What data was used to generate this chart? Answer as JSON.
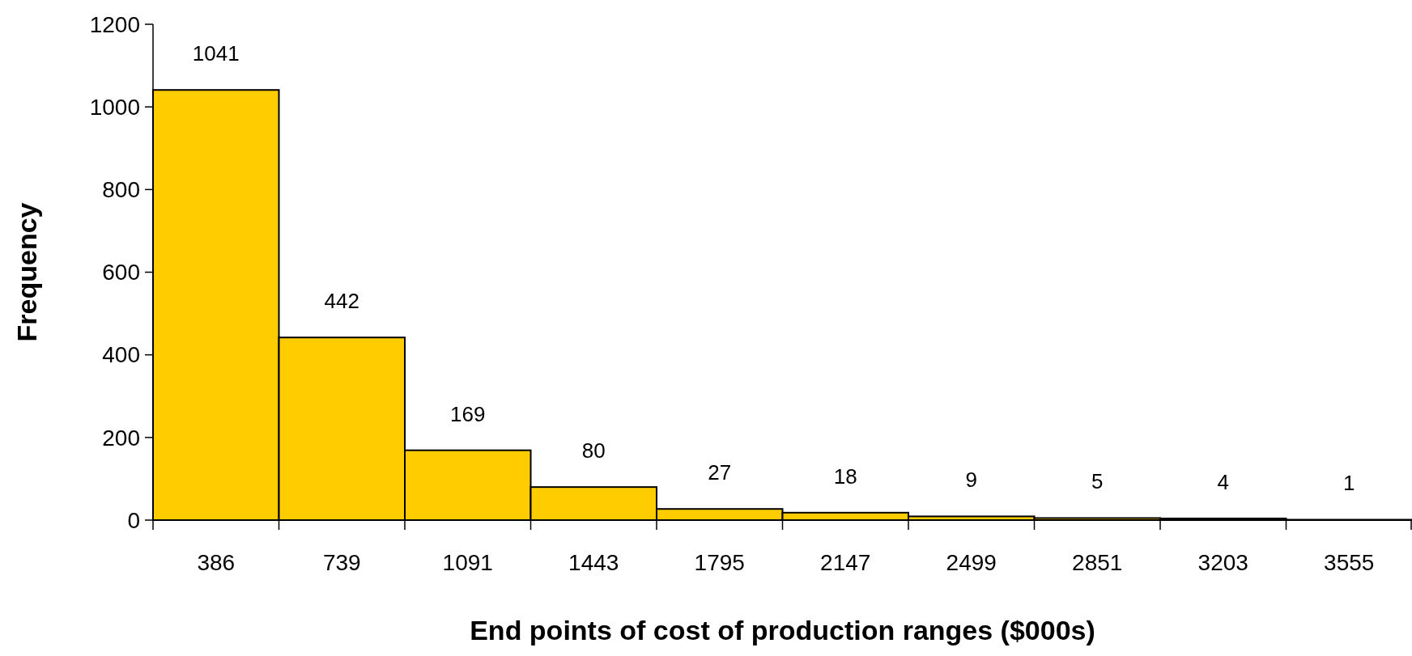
{
  "chart_data": {
    "type": "bar",
    "categories": [
      "386",
      "739",
      "1091",
      "1443",
      "1795",
      "2147",
      "2499",
      "2851",
      "3203",
      "3555"
    ],
    "values": [
      1041,
      442,
      169,
      80,
      27,
      18,
      9,
      5,
      4,
      1
    ],
    "color": "#ffcc00",
    "data_labels": true,
    "xlabel": "End points of cost of production ranges ($000s)",
    "ylabel": "Frequency",
    "ylim": [
      0,
      1200
    ],
    "yticks": [
      0,
      200,
      400,
      600,
      800,
      1000,
      1200
    ],
    "grid": false
  }
}
